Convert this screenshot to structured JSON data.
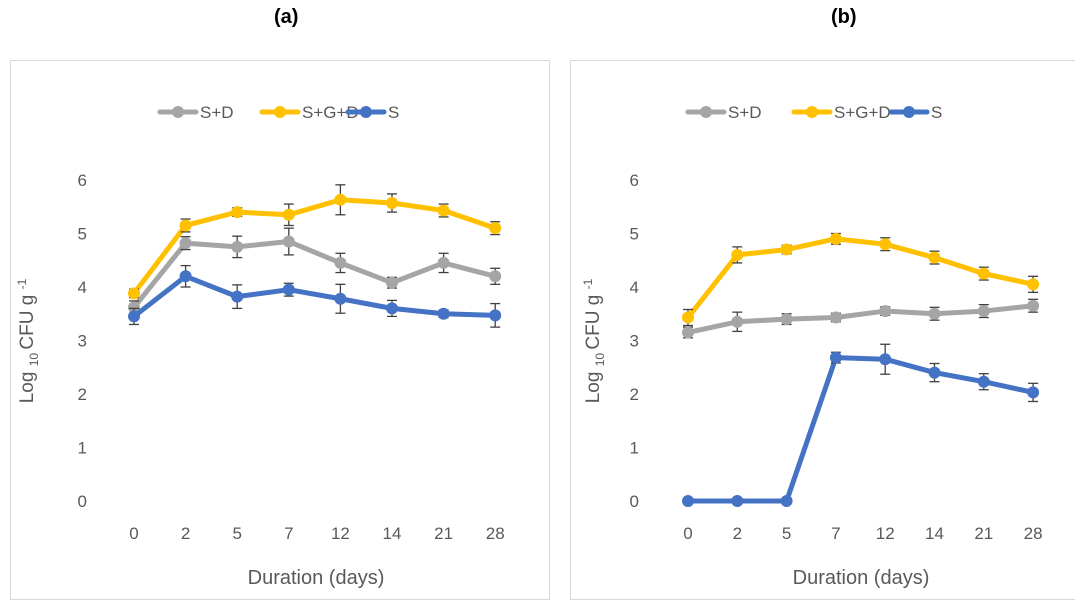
{
  "figure": {
    "panel_a_letter": "(a)",
    "panel_b_letter": "(b)"
  },
  "colors": {
    "S+D": "#a5a5a5",
    "S+G+D": "#ffc000",
    "S": "#4472c4",
    "axis_text": "#595959",
    "error_bar": "#404040",
    "panel_border": "#d9d9d9"
  },
  "chart_data": [
    {
      "panel": "(a)",
      "type": "line",
      "title": "",
      "xlabel": "Duration (days)",
      "ylabel_prefix": "Log",
      "ylabel_sub": "10",
      "ylabel_main": "CFU g",
      "ylabel_sup": "-1",
      "ylim": [
        0,
        6
      ],
      "yticks": [
        "0",
        "1",
        "2",
        "3",
        "4",
        "5",
        "6"
      ],
      "categories": [
        "0",
        "2",
        "5",
        "7",
        "12",
        "14",
        "21",
        "28"
      ],
      "grid": false,
      "legend": "top",
      "series": [
        {
          "name": "S+D",
          "values": [
            3.62,
            4.82,
            4.75,
            4.85,
            4.45,
            4.08,
            4.45,
            4.2
          ],
          "errors": [
            0.12,
            0.12,
            0.2,
            0.25,
            0.18,
            0.1,
            0.18,
            0.15
          ]
        },
        {
          "name": "S+G+D",
          "values": [
            3.88,
            5.15,
            5.4,
            5.35,
            5.63,
            5.57,
            5.43,
            5.1
          ],
          "errors": [
            0.08,
            0.12,
            0.08,
            0.2,
            0.28,
            0.17,
            0.12,
            0.12
          ]
        },
        {
          "name": "S",
          "values": [
            3.45,
            4.2,
            3.82,
            3.95,
            3.78,
            3.6,
            3.5,
            3.47
          ],
          "errors": [
            0.15,
            0.2,
            0.22,
            0.12,
            0.27,
            0.15,
            0.07,
            0.22
          ]
        }
      ]
    },
    {
      "panel": "(b)",
      "type": "line",
      "title": "",
      "xlabel": "Duration (days)",
      "ylabel_prefix": "Log",
      "ylabel_sub": "10",
      "ylabel_main": "CFU g",
      "ylabel_sup": "-1",
      "ylim": [
        0,
        6
      ],
      "yticks": [
        "0",
        "1",
        "2",
        "3",
        "4",
        "5",
        "6"
      ],
      "categories": [
        "0",
        "2",
        "5",
        "7",
        "12",
        "14",
        "21",
        "28"
      ],
      "grid": false,
      "legend": "top",
      "series": [
        {
          "name": "S+D",
          "values": [
            3.15,
            3.35,
            3.4,
            3.43,
            3.55,
            3.5,
            3.55,
            3.65
          ],
          "errors": [
            0.1,
            0.18,
            0.1,
            0.08,
            0.08,
            0.12,
            0.12,
            0.12
          ]
        },
        {
          "name": "S+G+D",
          "values": [
            3.43,
            4.6,
            4.7,
            4.9,
            4.8,
            4.55,
            4.25,
            4.05
          ],
          "errors": [
            0.15,
            0.15,
            0.08,
            0.1,
            0.12,
            0.12,
            0.12,
            0.15
          ]
        },
        {
          "name": "S",
          "values": [
            0.0,
            0.0,
            0.0,
            2.68,
            2.65,
            2.4,
            2.23,
            2.03
          ],
          "errors": [
            0,
            0,
            0,
            0.1,
            0.28,
            0.17,
            0.15,
            0.17
          ]
        }
      ]
    }
  ]
}
